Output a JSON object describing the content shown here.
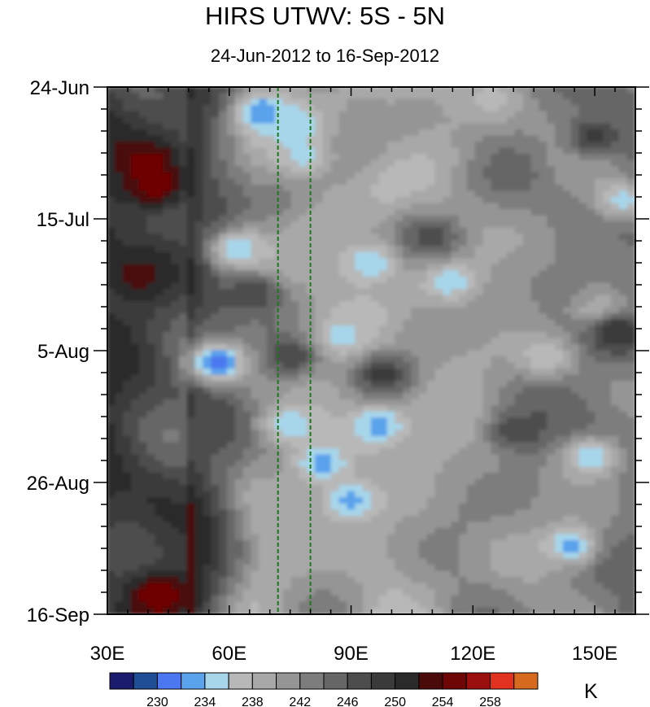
{
  "title": "HIRS UTWV: 5S - 5N",
  "subtitle": "24-Jun-2012 to 16-Sep-2012",
  "chart_data": {
    "type": "heatmap",
    "x_ticks": [
      {
        "value": 30,
        "label": "30E"
      },
      {
        "value": 60,
        "label": "60E"
      },
      {
        "value": 90,
        "label": "90E"
      },
      {
        "value": 120,
        "label": "120E"
      },
      {
        "value": 150,
        "label": "150E"
      }
    ],
    "xlim": [
      30,
      160
    ],
    "y_ticks": [
      {
        "value": 0,
        "label": "24-Jun"
      },
      {
        "value": 21,
        "label": "15-Jul"
      },
      {
        "value": 42,
        "label": "5-Aug"
      },
      {
        "value": 63,
        "label": "26-Aug"
      },
      {
        "value": 84,
        "label": "16-Sep"
      }
    ],
    "y_dates": [
      "24-Jun-2012",
      "16-Sep-2012"
    ],
    "ylim": [
      0,
      84
    ],
    "reference_lines_x": [
      72,
      80
    ],
    "reference_line_color": "#1a7a1a",
    "colorbar": {
      "unit": "K",
      "levels": [
        228,
        230,
        232,
        234,
        236,
        238,
        240,
        242,
        244,
        246,
        248,
        250,
        252,
        254,
        256,
        258,
        260
      ],
      "labels": [
        {
          "level": 230,
          "text": "230"
        },
        {
          "level": 234,
          "text": "234"
        },
        {
          "level": 238,
          "text": "238"
        },
        {
          "level": 242,
          "text": "242"
        },
        {
          "level": 246,
          "text": "246"
        },
        {
          "level": 250,
          "text": "250"
        },
        {
          "level": 254,
          "text": "254"
        },
        {
          "level": 258,
          "text": "258"
        }
      ],
      "colors": [
        "#1c1c6e",
        "#1f4e96",
        "#4b78f0",
        "#5aa2ec",
        "#a7d6ea",
        "#b8b8b8",
        "#a8a8a8",
        "#959595",
        "#7d7d7d",
        "#666666",
        "#4d4d4d",
        "#3a3a3a",
        "#2a2a2a",
        "#4a0a0a",
        "#6e0606",
        "#9a0e0e",
        "#e0321e",
        "#d66a1e"
      ]
    },
    "features": [
      {
        "lon": 40,
        "day": 12,
        "value": 255
      },
      {
        "lon": 42,
        "day": 16,
        "value": 256
      },
      {
        "lon": 38,
        "day": 30,
        "value": 253
      },
      {
        "lon": 43,
        "day": 81,
        "value": 256
      },
      {
        "lon": 57,
        "day": 44,
        "value": 230
      },
      {
        "lon": 68,
        "day": 4,
        "value": 232
      },
      {
        "lon": 76,
        "day": 6,
        "value": 234
      },
      {
        "lon": 78,
        "day": 11,
        "value": 235
      },
      {
        "lon": 62,
        "day": 26,
        "value": 234
      },
      {
        "lon": 95,
        "day": 28,
        "value": 234
      },
      {
        "lon": 114,
        "day": 31,
        "value": 234
      },
      {
        "lon": 88,
        "day": 40,
        "value": 235
      },
      {
        "lon": 97,
        "day": 54,
        "value": 233
      },
      {
        "lon": 75,
        "day": 54,
        "value": 234
      },
      {
        "lon": 83,
        "day": 60,
        "value": 233
      },
      {
        "lon": 90,
        "day": 66,
        "value": 233
      },
      {
        "lon": 144,
        "day": 73,
        "value": 233
      },
      {
        "lon": 157,
        "day": 18,
        "value": 235
      },
      {
        "lon": 152,
        "day": 36,
        "value": 236
      },
      {
        "lon": 138,
        "day": 43,
        "value": 236
      },
      {
        "lon": 149,
        "day": 59,
        "value": 234
      },
      {
        "lon": 125,
        "day": 2,
        "value": 237
      },
      {
        "lon": 98,
        "day": 46,
        "value": 249
      },
      {
        "lon": 75,
        "day": 43,
        "value": 248
      },
      {
        "lon": 150,
        "day": 8,
        "value": 249
      },
      {
        "lon": 156,
        "day": 39,
        "value": 250
      },
      {
        "lon": 131,
        "day": 55,
        "value": 248
      },
      {
        "lon": 110,
        "day": 24,
        "value": 247
      },
      {
        "lon": 66,
        "day": 33,
        "value": 248
      }
    ]
  }
}
